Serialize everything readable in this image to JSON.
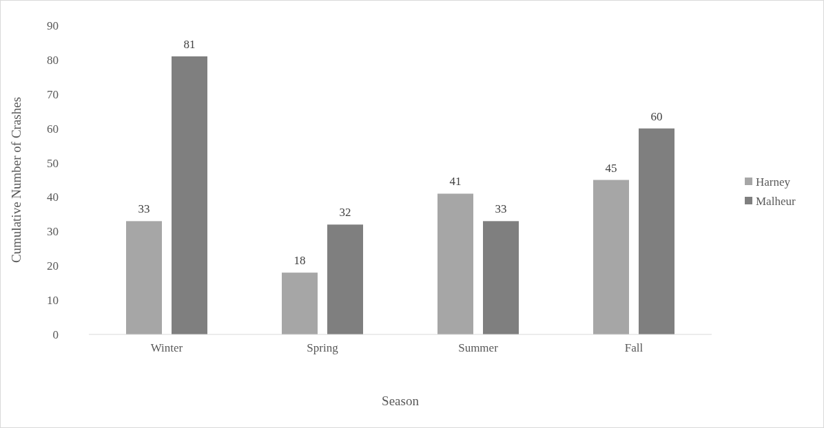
{
  "chart_data": {
    "type": "bar",
    "xlabel": "Season",
    "ylabel": "Cumulative Number of Crashes",
    "categories": [
      "Winter",
      "Spring",
      "Summer",
      "Fall"
    ],
    "series": [
      {
        "name": "Harney",
        "color": "#a6a6a6",
        "values": [
          33,
          18,
          41,
          45
        ]
      },
      {
        "name": "Malheur",
        "color": "#7f7f7f",
        "values": [
          81,
          32,
          33,
          60
        ]
      }
    ],
    "ylim": [
      0,
      90
    ],
    "yticks": [
      0,
      10,
      20,
      30,
      40,
      50,
      60,
      70,
      80,
      90
    ],
    "grid": false,
    "legend": "right",
    "data_labels": true
  }
}
